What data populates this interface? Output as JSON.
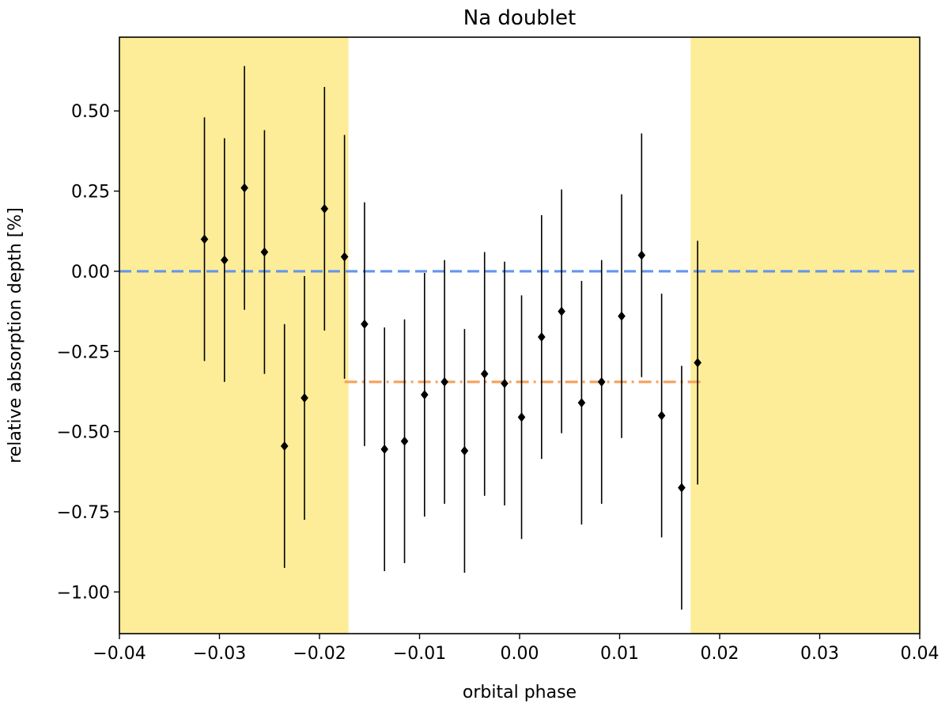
{
  "chart_data": {
    "type": "scatter",
    "title": "Na doublet",
    "xlabel": "orbital phase",
    "ylabel": "relative absorption depth [%]",
    "xlim": [
      -0.04,
      0.04
    ],
    "ylim": [
      -1.13,
      0.73
    ],
    "xticks": [
      -0.04,
      -0.03,
      -0.02,
      -0.01,
      0.0,
      0.01,
      0.02,
      0.03,
      0.04
    ],
    "xtick_labels": [
      "−0.04",
      "−0.03",
      "−0.02",
      "−0.01",
      "0.00",
      "0.01",
      "0.02",
      "0.03",
      "0.04"
    ],
    "yticks": [
      0.5,
      0.25,
      0.0,
      -0.25,
      -0.5,
      -0.75,
      -1.0
    ],
    "ytick_labels": [
      "0.50",
      "0.25",
      "0.00",
      "−0.25",
      "−0.50",
      "−0.75",
      "−1.00"
    ],
    "grid": false,
    "shaded_regions": [
      {
        "x0": -0.04,
        "x1": -0.0171,
        "color": "#fdec98"
      },
      {
        "x0": 0.0171,
        "x1": 0.04,
        "color": "#fdec98"
      }
    ],
    "reference_lines": [
      {
        "y": 0.0,
        "x0": -0.04,
        "x1": 0.04,
        "color": "#6495ed",
        "style": "dashed"
      },
      {
        "y": -0.345,
        "x0": -0.0175,
        "x1": 0.0185,
        "color": "#f4a460",
        "style": "dashdot"
      }
    ],
    "series": [
      {
        "marker": "diamond",
        "color": "#000000",
        "points": [
          {
            "x": -0.0315,
            "y": 0.1,
            "err": 0.38
          },
          {
            "x": -0.0295,
            "y": 0.035,
            "err": 0.38
          },
          {
            "x": -0.0275,
            "y": 0.26,
            "err": 0.38
          },
          {
            "x": -0.0255,
            "y": 0.06,
            "err": 0.38
          },
          {
            "x": -0.0235,
            "y": -0.545,
            "err": 0.38
          },
          {
            "x": -0.0215,
            "y": -0.395,
            "err": 0.38
          },
          {
            "x": -0.0195,
            "y": 0.195,
            "err": 0.38
          },
          {
            "x": -0.0175,
            "y": 0.045,
            "err": 0.38
          },
          {
            "x": -0.0155,
            "y": -0.165,
            "err": 0.38
          },
          {
            "x": -0.0135,
            "y": -0.555,
            "err": 0.38
          },
          {
            "x": -0.0115,
            "y": -0.53,
            "err": 0.38
          },
          {
            "x": -0.0095,
            "y": -0.385,
            "err": 0.38
          },
          {
            "x": -0.0075,
            "y": -0.345,
            "err": 0.38
          },
          {
            "x": -0.0055,
            "y": -0.56,
            "err": 0.38
          },
          {
            "x": -0.0035,
            "y": -0.32,
            "err": 0.38
          },
          {
            "x": -0.0015,
            "y": -0.35,
            "err": 0.38
          },
          {
            "x": 0.0002,
            "y": -0.455,
            "err": 0.38
          },
          {
            "x": 0.0022,
            "y": -0.205,
            "err": 0.38
          },
          {
            "x": 0.0042,
            "y": -0.125,
            "err": 0.38
          },
          {
            "x": 0.0062,
            "y": -0.41,
            "err": 0.38
          },
          {
            "x": 0.0082,
            "y": -0.345,
            "err": 0.38
          },
          {
            "x": 0.0102,
            "y": -0.14,
            "err": 0.38
          },
          {
            "x": 0.0122,
            "y": 0.05,
            "err": 0.38
          },
          {
            "x": 0.0142,
            "y": -0.45,
            "err": 0.38
          },
          {
            "x": 0.0162,
            "y": -0.675,
            "err": 0.38
          },
          {
            "x": 0.0178,
            "y": -0.285,
            "err": 0.38
          }
        ]
      }
    ]
  }
}
